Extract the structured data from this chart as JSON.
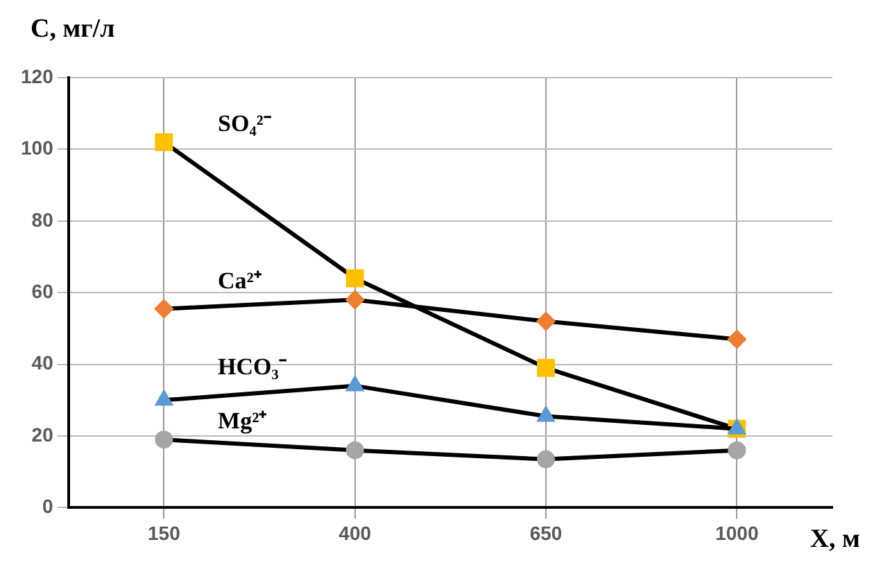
{
  "chart_data": {
    "type": "line",
    "xlabel": "X, м",
    "ylabel": "C, мг/л",
    "categories": [
      "150",
      "400",
      "650",
      "1000"
    ],
    "series": [
      {
        "name": "SO₄²⁻",
        "color": "#ffc000",
        "marker": "square",
        "values": [
          102,
          64,
          39,
          22
        ]
      },
      {
        "name": "Ca²⁺",
        "color": "#ed7d31",
        "marker": "diamond",
        "values": [
          55.5,
          58,
          52,
          47
        ]
      },
      {
        "name": "HCO₃⁻",
        "color": "#5b9bd5",
        "marker": "triangle",
        "values": [
          30,
          34,
          25.5,
          22
        ]
      },
      {
        "name": "Mg²⁺",
        "color": "#a5a5a5",
        "marker": "circle",
        "values": [
          19,
          16,
          13.5,
          16
        ]
      }
    ],
    "ylim": [
      0,
      120
    ],
    "yticks": [
      0,
      20,
      40,
      60,
      80,
      100,
      120
    ],
    "grid": true,
    "legend": false,
    "line_style": "solid"
  }
}
